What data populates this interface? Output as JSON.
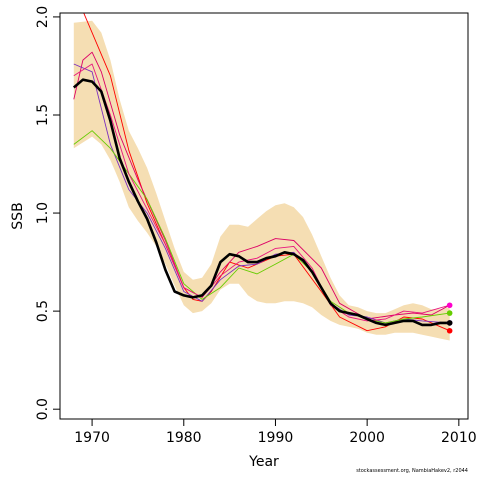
{
  "chart_data": {
    "type": "line",
    "xlabel": "Year",
    "ylabel": "SSB",
    "xlim": [
      1966.5,
      2011
    ],
    "ylim": [
      -0.05,
      2.02
    ],
    "xticks": [
      1970,
      1980,
      1990,
      2000,
      2010
    ],
    "xtick_labels": [
      "1970",
      "1980",
      "1990",
      "2000",
      "2010"
    ],
    "yticks": [
      0.0,
      0.5,
      1.0,
      1.5,
      2.0
    ],
    "ytick_labels": [
      "0.0",
      "0.5",
      "1.0",
      "1.5",
      "2.0"
    ],
    "grid": false,
    "band": {
      "color": "#f5deb3",
      "x": [
        1968,
        1970,
        1971,
        1972,
        1973,
        1974,
        1975,
        1976,
        1977,
        1978,
        1979,
        1980,
        1981,
        1982,
        1983,
        1984,
        1985,
        1986,
        1987,
        1988,
        1989,
        1990,
        1991,
        1992,
        1993,
        1994,
        1995,
        1996,
        1997,
        1998,
        1999,
        2000,
        2001,
        2002,
        2003,
        2004,
        2005,
        2006,
        2007,
        2008,
        2009
      ],
      "upper": [
        1.97,
        1.98,
        1.92,
        1.78,
        1.58,
        1.42,
        1.33,
        1.23,
        1.1,
        0.96,
        0.82,
        0.7,
        0.66,
        0.67,
        0.74,
        0.88,
        0.94,
        0.94,
        0.93,
        0.97,
        1.01,
        1.04,
        1.05,
        1.03,
        0.98,
        0.89,
        0.78,
        0.67,
        0.58,
        0.53,
        0.52,
        0.5,
        0.49,
        0.49,
        0.51,
        0.53,
        0.54,
        0.53,
        0.51,
        0.51,
        0.52
      ],
      "lower": [
        1.33,
        1.39,
        1.35,
        1.27,
        1.16,
        1.03,
        0.96,
        0.9,
        0.83,
        0.74,
        0.63,
        0.53,
        0.49,
        0.5,
        0.54,
        0.61,
        0.64,
        0.64,
        0.58,
        0.55,
        0.54,
        0.54,
        0.55,
        0.55,
        0.54,
        0.52,
        0.48,
        0.45,
        0.43,
        0.42,
        0.41,
        0.39,
        0.38,
        0.38,
        0.39,
        0.39,
        0.39,
        0.38,
        0.37,
        0.36,
        0.35
      ]
    },
    "series": [
      {
        "color": "#ff0000",
        "x": [
          1969,
          1972,
          1974,
          1976,
          1978,
          1980,
          1981,
          1982,
          1983,
          1985,
          1987,
          1990,
          1992,
          1995,
          1997,
          2000,
          2002,
          2004,
          2006,
          2008,
          2009
        ],
        "values": [
          2.03,
          1.7,
          1.32,
          1.05,
          0.84,
          0.62,
          0.56,
          0.55,
          0.6,
          0.75,
          0.72,
          0.78,
          0.79,
          0.6,
          0.47,
          0.4,
          0.42,
          0.47,
          0.46,
          0.42,
          0.4
        ]
      },
      {
        "color": "#dd0066",
        "x": [
          1968,
          1969,
          1970,
          1971,
          1973,
          1975,
          1978,
          1980,
          1982,
          1984,
          1986,
          1988,
          1990,
          1992,
          1995,
          1997,
          2000,
          2003,
          2005,
          2007,
          2009
        ],
        "values": [
          1.58,
          1.78,
          1.82,
          1.72,
          1.4,
          1.17,
          0.86,
          0.62,
          0.57,
          0.7,
          0.8,
          0.83,
          0.87,
          0.86,
          0.72,
          0.54,
          0.46,
          0.48,
          0.49,
          0.48,
          0.53
        ]
      },
      {
        "color": "#7b2fbe",
        "x": [
          1968,
          1970,
          1972,
          1974,
          1976,
          1978,
          1980,
          1982,
          1984,
          1986,
          1988,
          1990,
          1992,
          1994,
          1996,
          1998,
          2000,
          2002,
          2004,
          2006,
          2009
        ],
        "values": [
          1.76,
          1.72,
          1.35,
          1.12,
          1.0,
          0.82,
          0.6,
          0.55,
          0.66,
          0.73,
          0.74,
          0.79,
          0.8,
          0.7,
          0.54,
          0.48,
          0.47,
          0.44,
          0.46,
          0.45,
          0.44
        ]
      },
      {
        "color": "#66cc00",
        "x": [
          1968,
          1970,
          1972,
          1974,
          1976,
          1978,
          1980,
          1982,
          1984,
          1986,
          1988,
          1990,
          1992,
          1994,
          1996,
          1998,
          2000,
          2002,
          2004,
          2006,
          2009
        ],
        "values": [
          1.35,
          1.42,
          1.33,
          1.2,
          1.07,
          0.87,
          0.64,
          0.56,
          0.62,
          0.72,
          0.69,
          0.74,
          0.79,
          0.7,
          0.55,
          0.49,
          0.46,
          0.44,
          0.46,
          0.47,
          0.49
        ]
      },
      {
        "color": "#e8167e",
        "x": [
          1968,
          1970,
          1972,
          1974,
          1976,
          1978,
          1980,
          1982,
          1984,
          1986,
          1988,
          1990,
          1992,
          1994,
          1996,
          1998,
          2000,
          2002,
          2004,
          2006,
          2009
        ],
        "values": [
          1.7,
          1.76,
          1.5,
          1.2,
          1.02,
          0.84,
          0.62,
          0.57,
          0.68,
          0.75,
          0.77,
          0.82,
          0.83,
          0.72,
          0.53,
          0.47,
          0.45,
          0.46,
          0.5,
          0.49,
          0.53
        ]
      },
      {
        "color": "#000000",
        "bold": true,
        "x": [
          1968,
          1969,
          1970,
          1971,
          1972,
          1973,
          1974,
          1975,
          1976,
          1977,
          1978,
          1979,
          1980,
          1981,
          1982,
          1983,
          1984,
          1985,
          1986,
          1987,
          1988,
          1989,
          1990,
          1991,
          1992,
          1993,
          1994,
          1995,
          1996,
          1997,
          1998,
          1999,
          2000,
          2001,
          2002,
          2003,
          2004,
          2005,
          2006,
          2007,
          2008,
          2009
        ],
        "values": [
          1.64,
          1.68,
          1.67,
          1.62,
          1.47,
          1.28,
          1.16,
          1.06,
          0.97,
          0.85,
          0.71,
          0.6,
          0.58,
          0.57,
          0.58,
          0.63,
          0.75,
          0.79,
          0.78,
          0.75,
          0.75,
          0.77,
          0.78,
          0.8,
          0.79,
          0.76,
          0.7,
          0.62,
          0.54,
          0.5,
          0.49,
          0.48,
          0.46,
          0.44,
          0.43,
          0.44,
          0.45,
          0.45,
          0.43,
          0.43,
          0.44,
          0.44
        ]
      }
    ],
    "endpoints": [
      {
        "x": 2009,
        "y": 0.53,
        "color": "#ff00cc"
      },
      {
        "x": 2009,
        "y": 0.49,
        "color": "#66cc00"
      },
      {
        "x": 2009,
        "y": 0.44,
        "color": "#7b2fbe"
      },
      {
        "x": 2009,
        "y": 0.44,
        "color": "#000000"
      },
      {
        "x": 2009,
        "y": 0.4,
        "color": "#ff0000"
      }
    ]
  },
  "footnote": "stockassessment.org, NambiaHakev2, r2044"
}
